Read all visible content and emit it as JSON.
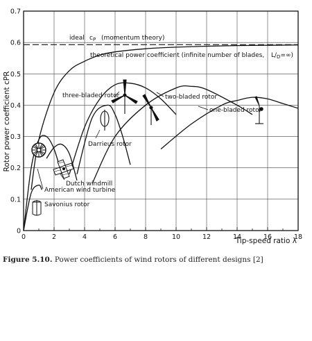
{
  "caption": {
    "label": "Figure 5.10.",
    "text": "Power coefficients of wind rotors of different designs [2]"
  },
  "chart_data": {
    "type": "line",
    "title": "",
    "xlabel": "Tip-speed ratio λ",
    "ylabel": "Rotor power coefficient cPR",
    "xlim": [
      0,
      18
    ],
    "ylim": [
      0,
      0.7
    ],
    "xticks": [
      0,
      2,
      4,
      6,
      8,
      10,
      12,
      14,
      16,
      18
    ],
    "yticks": [
      0,
      0.1,
      0.2,
      0.3,
      0.4,
      0.5,
      0.6,
      0.7
    ],
    "grid": true,
    "reference_lines": [
      {
        "name": "ideal cP (momentum theory)",
        "y": 0.593,
        "style": "dashed"
      }
    ],
    "series": [
      {
        "name": "theoretical power coefficient (infinite number of blades, L/D=∞)",
        "x": [
          0.5,
          1,
          2,
          3,
          4,
          5,
          6,
          8,
          10,
          12,
          14,
          16,
          18
        ],
        "y": [
          0.13,
          0.29,
          0.44,
          0.51,
          0.54,
          0.56,
          0.57,
          0.58,
          0.585,
          0.588,
          0.59,
          0.591,
          0.592
        ]
      },
      {
        "name": "three-bladed rotor",
        "x": [
          3,
          4,
          5,
          6,
          7,
          8,
          9,
          10
        ],
        "y": [
          0.18,
          0.33,
          0.42,
          0.465,
          0.47,
          0.455,
          0.42,
          0.37
        ]
      },
      {
        "name": "two-bladed rotor",
        "x": [
          4.5,
          6,
          8,
          10,
          11,
          12,
          14,
          15
        ],
        "y": [
          0.15,
          0.3,
          0.4,
          0.455,
          0.46,
          0.45,
          0.4,
          0.37
        ]
      },
      {
        "name": "one-bladed rotor",
        "x": [
          9,
          11,
          13,
          14,
          15,
          16,
          17,
          18
        ],
        "y": [
          0.26,
          0.34,
          0.4,
          0.415,
          0.425,
          0.42,
          0.405,
          0.39
        ]
      },
      {
        "name": "Darrieus rotor",
        "x": [
          3.5,
          4.5,
          5.5,
          6,
          6.5,
          7
        ],
        "y": [
          0.18,
          0.36,
          0.4,
          0.37,
          0.3,
          0.21
        ]
      },
      {
        "name": "Dutch windmill",
        "x": [
          1.5,
          2,
          2.5,
          3,
          3.5
        ],
        "y": [
          0.23,
          0.265,
          0.275,
          0.245,
          0.16
        ]
      },
      {
        "name": "American wind turbine",
        "x": [
          0,
          0.5,
          1,
          1.5,
          2,
          2.5
        ],
        "y": [
          0,
          0.2,
          0.29,
          0.3,
          0.26,
          0.18
        ]
      },
      {
        "name": "Savonius rotor",
        "x": [
          0,
          0.5,
          1,
          1.2
        ],
        "y": [
          0,
          0.12,
          0.145,
          0.13
        ]
      }
    ],
    "annotations": [
      {
        "text": "ideal",
        "name": "ideal-label"
      },
      {
        "text": "(momentum theory)",
        "name": "momentum-label"
      },
      {
        "text": "theoretical power coefficient (infinite number of blades,",
        "name": "theoretical-label"
      },
      {
        "text": "three-bladed rotor",
        "name": "three-bladed-label"
      },
      {
        "text": "two-bladed rotor",
        "name": "two-bladed-label"
      },
      {
        "text": "one-bladed rotor",
        "name": "one-bladed-label"
      },
      {
        "text": "Darrieus rotor",
        "name": "darrieus-label"
      },
      {
        "text": "Dutch windmill",
        "name": "dutch-label"
      },
      {
        "text": "American wind turbine",
        "name": "american-label"
      },
      {
        "text": "Savonius rotor",
        "name": "savonius-label"
      }
    ]
  }
}
